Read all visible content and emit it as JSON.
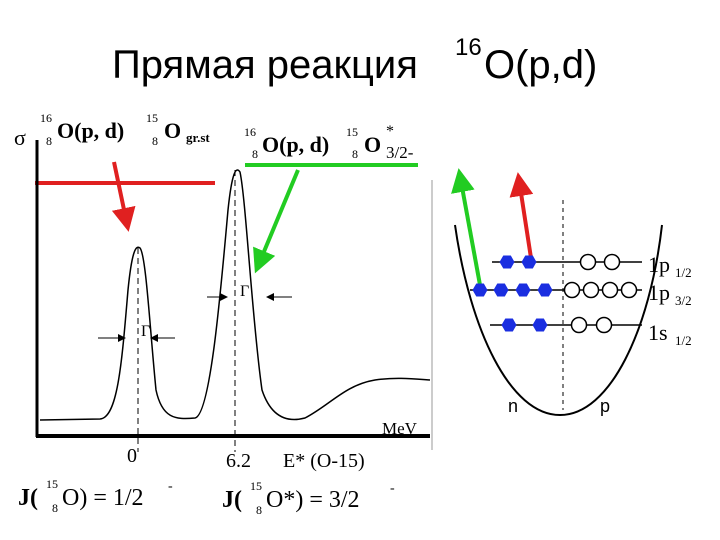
{
  "title": {
    "text": "Прямая реакция",
    "mass": "16",
    "reaction": "O(p,d)"
  },
  "left_formula": {
    "sigma": "σ",
    "target_mass": "16",
    "target_z": "8",
    "reaction": "O(p, d)",
    "product_mass": "15",
    "product_z": "8",
    "product": "O",
    "state": "gr.st"
  },
  "right_formula": {
    "target_mass": "16",
    "target_z": "8",
    "reaction": "O(p, d)",
    "product_mass": "15",
    "product_z": "8",
    "product": "O",
    "excited": "*",
    "state": "3/2-"
  },
  "spectrum": {
    "peak_width": "Γ",
    "axis_unit": "MeV",
    "ground_energy": "0",
    "excited_energy": "6.2",
    "axis_label": "E* (O-15)"
  },
  "spins": [
    {
      "prefix": "J(",
      "mass": "15",
      "z": "8",
      "rest": "O) = 1/2",
      "parity": "-"
    },
    {
      "prefix": "J(",
      "mass": "15",
      "z": "8",
      "rest": "O*) = 3/2",
      "parity": "-"
    }
  ],
  "shell_model": {
    "levels": [
      {
        "name": "1p",
        "j": "1/2"
      },
      {
        "name": "1p",
        "j": "3/2"
      },
      {
        "name": "1s",
        "j": "1/2"
      }
    ],
    "neutrons": "n",
    "protons": "p"
  }
}
